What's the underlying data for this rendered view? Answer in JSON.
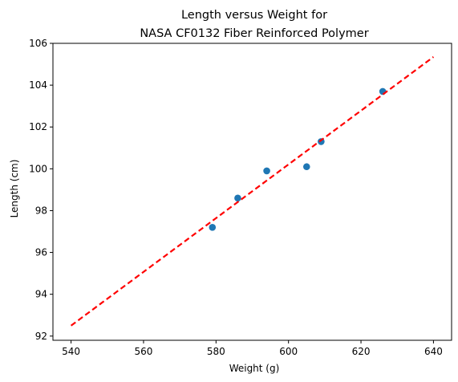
{
  "chart_data": {
    "type": "scatter",
    "title_lines": [
      "Length versus Weight for",
      "NASA CF0132 Fiber Reinforced Polymer"
    ],
    "xlabel": "Weight (g)",
    "ylabel": "Length (cm)",
    "xlim": [
      535,
      645
    ],
    "ylim": [
      91.8,
      106
    ],
    "xticks": [
      540,
      560,
      580,
      600,
      620,
      640
    ],
    "yticks": [
      92,
      94,
      96,
      98,
      100,
      102,
      104,
      106
    ],
    "grid": false,
    "series": [
      {
        "kind": "points",
        "color": "#1f77b4",
        "x": [
          579,
          586,
          594,
          605,
          609,
          626
        ],
        "y": [
          97.2,
          98.6,
          99.9,
          100.1,
          101.3,
          103.7
        ]
      },
      {
        "kind": "fit-line",
        "color": "#ff0000",
        "style": "dashed",
        "x": [
          540,
          640
        ],
        "y": [
          92.5,
          105.35
        ]
      }
    ]
  }
}
